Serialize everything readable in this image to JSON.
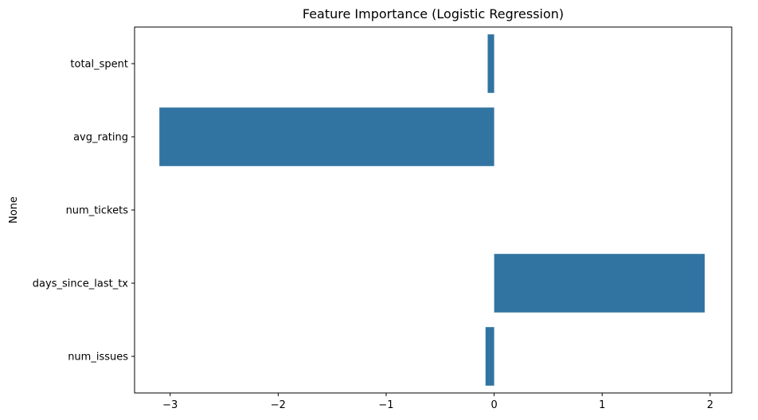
{
  "chart_data": {
    "type": "bar",
    "orientation": "horizontal",
    "title": "Feature Importance (Logistic Regression)",
    "xlabel": "",
    "ylabel": "None",
    "categories": [
      "total_spent",
      "avg_rating",
      "num_tickets",
      "days_since_last_tx",
      "num_issues"
    ],
    "values": [
      -0.06,
      -3.1,
      0.0,
      1.95,
      -0.08
    ],
    "xlim": [
      -3.33,
      2.2
    ],
    "xticks": [
      -3,
      -2,
      -1,
      0,
      1,
      2
    ],
    "xtick_labels": [
      "−3",
      "−2",
      "−1",
      "0",
      "1",
      "2"
    ],
    "grid": false,
    "bar_color": "#3274a1"
  }
}
